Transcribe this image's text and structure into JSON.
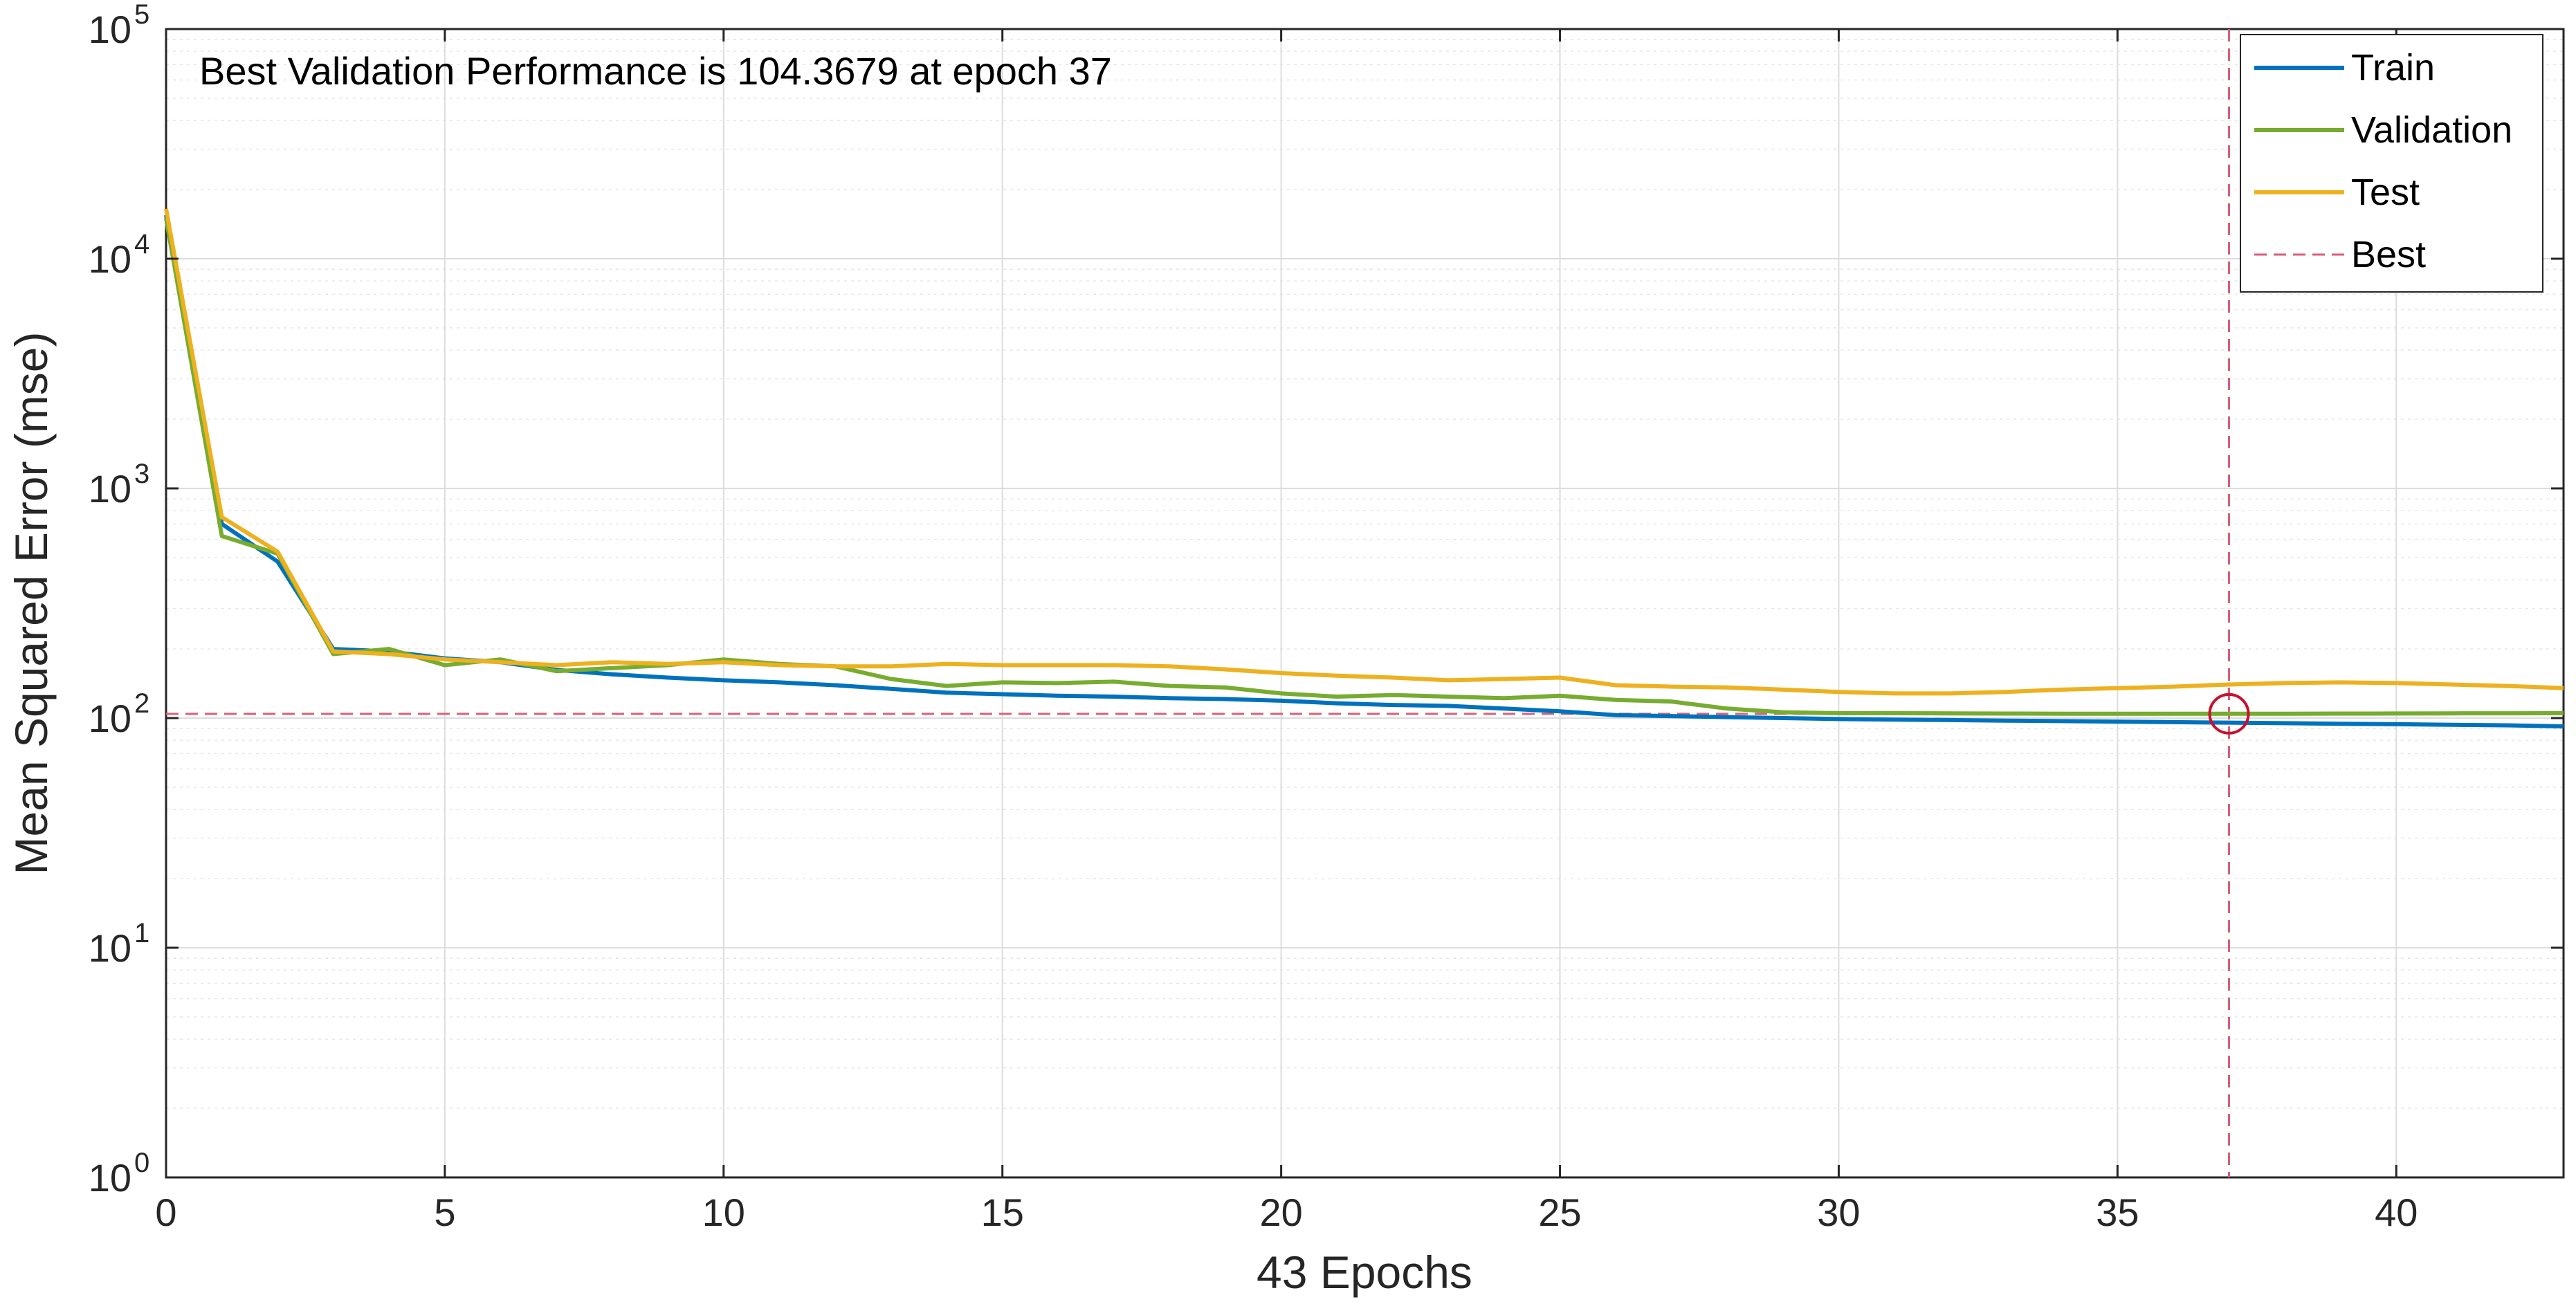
{
  "chart_data": {
    "type": "line",
    "title": "Best Validation Performance is 104.3679 at epoch 37",
    "xlabel": "43 Epochs",
    "ylabel": "Mean Squared Error  (mse)",
    "xlim": [
      0,
      43
    ],
    "ylim": [
      1,
      100000
    ],
    "yscale": "log",
    "grid": true,
    "x_ticks": [
      "0",
      "5",
      "10",
      "15",
      "20",
      "25",
      "30",
      "35",
      "40"
    ],
    "y_ticks": [
      {
        "base": "10",
        "exp": "0"
      },
      {
        "base": "10",
        "exp": "1"
      },
      {
        "base": "10",
        "exp": "2"
      },
      {
        "base": "10",
        "exp": "3"
      },
      {
        "base": "10",
        "exp": "4"
      },
      {
        "base": "10",
        "exp": "5"
      }
    ],
    "x": [
      0,
      1,
      2,
      3,
      4,
      5,
      6,
      7,
      8,
      9,
      10,
      11,
      12,
      13,
      14,
      15,
      16,
      17,
      18,
      19,
      20,
      21,
      22,
      23,
      24,
      25,
      26,
      27,
      28,
      29,
      30,
      31,
      32,
      33,
      34,
      35,
      36,
      37,
      38,
      39,
      40,
      41,
      42,
      43
    ],
    "series": [
      {
        "name": "Train",
        "color": "#0072BD",
        "values": [
          15500,
          700,
          480,
          200,
          195,
          182,
          175,
          162,
          155,
          150,
          146,
          143,
          139,
          134,
          129,
          127,
          125,
          124,
          122,
          121,
          119,
          116,
          114,
          113,
          110,
          107,
          103,
          102,
          101,
          100,
          99,
          98.5,
          98,
          97.5,
          97,
          96.5,
          96,
          95.5,
          95,
          94.5,
          94,
          93.5,
          93,
          92
        ]
      },
      {
        "name": "Validation",
        "color": "#77AC30",
        "values": [
          15000,
          620,
          520,
          190,
          200,
          170,
          180,
          160,
          165,
          170,
          180,
          172,
          168,
          148,
          138,
          143,
          142,
          144,
          138,
          136,
          128,
          124,
          126,
          124,
          122,
          125,
          120,
          118,
          110,
          106,
          105,
          105,
          104.8,
          104.6,
          104.5,
          104.4,
          104.4,
          104.3679,
          104.5,
          104.6,
          104.7,
          104.8,
          104.9,
          105
        ]
      },
      {
        "name": "Test",
        "color": "#EDB120",
        "values": [
          16500,
          750,
          530,
          195,
          190,
          180,
          175,
          170,
          175,
          172,
          175,
          170,
          168,
          168,
          172,
          170,
          170,
          170,
          168,
          163,
          157,
          153,
          150,
          146,
          148,
          150,
          139,
          137,
          136,
          133,
          130,
          128,
          128,
          130,
          133,
          135,
          137,
          140,
          142,
          143,
          142,
          140,
          138,
          135
        ]
      },
      {
        "name": "Best",
        "color": "#D95F7A",
        "style": "dashed"
      }
    ],
    "best": {
      "epoch": 37,
      "value": 104.3679
    },
    "legend": {
      "position": "top-right",
      "entries": [
        "Train",
        "Validation",
        "Test",
        "Best"
      ]
    }
  }
}
